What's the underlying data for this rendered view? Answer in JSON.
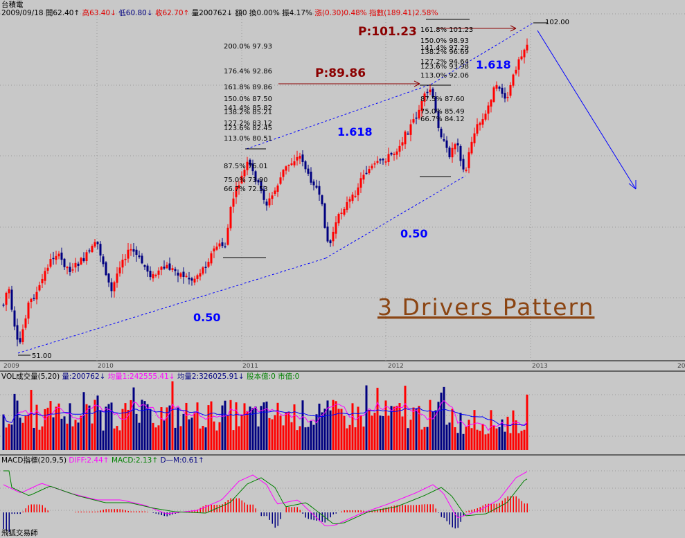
{
  "app": {
    "title": "台積電",
    "footer": "飛狐交易師"
  },
  "header": {
    "date": "2009/09/18",
    "open": "開62.40↑",
    "high": "高63.40↓",
    "low": "低60.80↓",
    "close": "收62.70↑",
    "volume": "量200762↓",
    "amount": "額0",
    "turnover": "換0.00%",
    "amplitude": "振4.17%",
    "change": "漲(0.30)0.48%",
    "index": "指數(189.41)2.58%"
  },
  "vol_header": {
    "label": "VOL成交量(5,20)",
    "vol": "量:200762↓",
    "avg1": "均量1:242555.41↓",
    "avg2": "均量2:326025.91↓",
    "extra": "股本億:0 市值:0"
  },
  "macd_header": {
    "label": "MACD指標(20,9,5)",
    "diff": "DIFF:2.44↑",
    "macd": "MACD:2.13↑",
    "dm": "D—M:0.61↑"
  },
  "annotations": {
    "pattern_title": "3 Drivers Pattern",
    "p1": "P:89.86",
    "p2": "P:101.23",
    "r_half_1": "0.50",
    "r_half_2": "0.50",
    "r_ext_1": "1.618",
    "r_ext_2": "1.618",
    "low_label": "51.00",
    "high_label": "102.00"
  },
  "fib_levels_1": [
    "200.0% 97.93",
    "176.4% 92.86",
    "161.8% 89.86",
    "150.0% 87.50",
    "141.4% 85.82",
    "138.2% 85.21",
    "127.2% 83.12",
    "123.6% 82.45",
    "113.0% 80.51",
    "87.5% 76.01",
    "75.0% 73.90",
    "66.7% 72.53"
  ],
  "fib_levels_2": [
    "161.8% 101.23",
    "150.0% 98.93",
    "141.4% 97.29",
    "138.2% 96.69",
    "127.2% 94.64",
    "123.6% 93.98",
    "113.0% 92.06",
    "87.5% 87.60",
    "75.0% 85.49",
    "66.7% 84.12"
  ],
  "colors": {
    "background": "#c8c8c8",
    "up": "#ff0000",
    "down": "#000080",
    "dashed_line": "#0000ff",
    "price_arrow": "#8b0000",
    "pattern_text": "#8b4513",
    "ratio_text": "#0000ff",
    "diff_line": "#ff00ff",
    "macd_line": "#008000",
    "vol_ma1": "#ff00ff",
    "vol_ma2": "#0000ff"
  },
  "chart_data": [
    {
      "type": "candlestick",
      "title": "台積電",
      "x_tick_labels": [
        "2009",
        "2010",
        "2011",
        "2012",
        "2013"
      ],
      "ylim": [
        48,
        104
      ],
      "pattern_points": [
        {
          "label": "low",
          "date": "2009",
          "value": 51.0
        },
        {
          "label": "high",
          "date": "2012-12",
          "value": 102.0
        }
      ]
    },
    {
      "type": "bar",
      "title": "VOL成交量(5,20)",
      "series": [
        {
          "name": "量"
        },
        {
          "name": "均量1"
        },
        {
          "name": "均量2"
        }
      ]
    },
    {
      "type": "line",
      "title": "MACD指標(20,9,5)",
      "series": [
        {
          "name": "DIFF",
          "last": 2.44
        },
        {
          "name": "MACD",
          "last": 2.13
        },
        {
          "name": "D—M",
          "last": 0.61
        }
      ]
    }
  ]
}
